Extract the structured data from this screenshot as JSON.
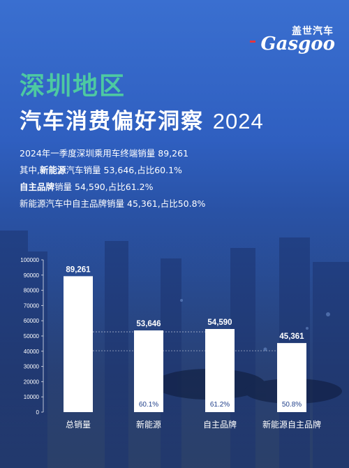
{
  "logo": {
    "cn": "盖世汽车",
    "en": "Gasgoo"
  },
  "title_line1": "深圳地区",
  "title_line2": "汽车消费偏好洞察",
  "title_year": "2024",
  "stats": {
    "line1": {
      "text": "2024年一季度深圳乘用车终端销量",
      "value": "89,261"
    },
    "line2": {
      "prefix": "其中,",
      "bold": "新能源",
      "text": "汽车销量",
      "value": "53,646",
      "share": ",占比60.1%"
    },
    "line3": {
      "bold": "自主品牌",
      "text": "销量",
      "value": "54,590",
      "share": ",占比61.2%"
    },
    "line4": {
      "text": "新能源汽车中自主品牌销量",
      "value": "45,361",
      "share": ",占比50.8%"
    }
  },
  "colors": {
    "bar": "#ffffff",
    "title_accent": "#4dc9a2",
    "percent_text": "#1f3f8a"
  },
  "chart_data": {
    "type": "bar",
    "categories": [
      "总销量",
      "新能源",
      "自主品牌",
      "新能源自主品牌"
    ],
    "values": [
      89261,
      53646,
      54590,
      45361
    ],
    "value_labels": [
      "89,261",
      "53,646",
      "54,590",
      "45,361"
    ],
    "percent_labels": [
      "",
      "60.1%",
      "61.2%",
      "50.8%"
    ],
    "ylim": [
      0,
      100000
    ],
    "yticks": [
      0,
      10000,
      20000,
      30000,
      40000,
      50000,
      60000,
      70000,
      80000,
      90000,
      100000
    ],
    "title": "",
    "xlabel": "",
    "ylabel": "",
    "grid": false,
    "legend": "none"
  }
}
